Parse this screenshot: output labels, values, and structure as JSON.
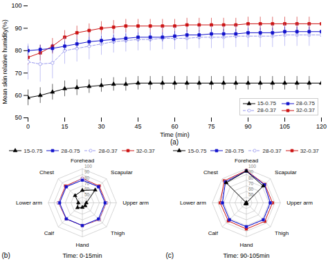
{
  "chart_data": [
    {
      "type": "line",
      "xlabel": "Time (min)",
      "ylabel": "Mean skin relative humidity(%)",
      "annotation": "(a)",
      "x": [
        0,
        5,
        10,
        15,
        20,
        25,
        30,
        35,
        40,
        45,
        50,
        55,
        60,
        65,
        70,
        75,
        80,
        85,
        90,
        95,
        100,
        105,
        110,
        115,
        120
      ],
      "series": [
        {
          "name": "15-0.75",
          "color": "#000000",
          "marker": "triangle",
          "line_style": "solid",
          "values": [
            59,
            60,
            61.5,
            63,
            63.5,
            64,
            64.5,
            65,
            65,
            65.5,
            65.5,
            65.5,
            65.5,
            65.5,
            65.5,
            65.5,
            65.5,
            65.5,
            65.5,
            65.5,
            65.5,
            65.5,
            65.5,
            65.5,
            65.5
          ],
          "errors": [
            3.5,
            3.5,
            3.5,
            3.5,
            3.5,
            3,
            3,
            3,
            3,
            3,
            3,
            3,
            3,
            3,
            3,
            3,
            3,
            3,
            3,
            3,
            3,
            3,
            3,
            3,
            3
          ]
        },
        {
          "name": "28-0.75",
          "color": "#1111CC",
          "marker": "square",
          "line_style": "solid",
          "values": [
            80,
            80.5,
            81,
            82,
            83,
            84,
            84.5,
            85,
            85.5,
            86,
            86,
            86,
            86.5,
            87,
            87,
            87.5,
            87.5,
            87.5,
            88,
            88,
            88,
            88.5,
            88.5,
            88.5,
            88.5
          ],
          "errors": [
            2,
            2,
            2,
            2,
            2,
            2,
            2,
            2,
            2,
            2,
            2,
            2,
            2,
            2,
            2,
            2,
            2,
            2,
            2,
            2,
            2,
            2,
            2,
            2,
            2
          ]
        },
        {
          "name": "28-0.37",
          "color": "#9999EE",
          "marker": "hollow_circle",
          "line_style": "dashed",
          "values": [
            75,
            74,
            74.5,
            80,
            81,
            82,
            83,
            84,
            84.5,
            85,
            85,
            85.5,
            85.5,
            85.5,
            86,
            86,
            86,
            86.5,
            86.5,
            86.5,
            86.5,
            87,
            87,
            87,
            87
          ],
          "errors": [
            8,
            8,
            7,
            6,
            6,
            6,
            5,
            5,
            5,
            5,
            5,
            5,
            5,
            5,
            5,
            5,
            5,
            5,
            5,
            5,
            5,
            5,
            5,
            5,
            5
          ]
        },
        {
          "name": "32-0.37",
          "color": "#CC1111",
          "marker": "square",
          "line_style": "solid",
          "values": [
            77,
            79,
            82,
            86,
            88,
            89,
            90,
            90.5,
            91,
            91,
            91,
            91,
            91,
            91.5,
            91.5,
            91.5,
            91.5,
            91.5,
            92,
            92,
            92,
            92,
            92,
            92,
            92
          ],
          "errors": [
            3.5,
            3.5,
            3.5,
            3,
            3,
            3,
            3,
            3,
            3,
            3,
            3,
            3,
            3,
            3,
            3,
            3,
            3,
            3,
            3,
            3,
            3,
            3,
            3,
            3,
            3
          ]
        }
      ],
      "xlim": [
        0,
        120
      ],
      "ylim": [
        50,
        100
      ],
      "xticks": [
        0,
        15,
        30,
        45,
        60,
        75,
        90,
        105,
        120
      ],
      "yticks": [
        50,
        60,
        70,
        80,
        90,
        100
      ],
      "legend": "lower right"
    },
    {
      "type": "radar",
      "title": "Time: 0-15min",
      "annotation": "(b)",
      "categories": [
        "Forehead",
        "Scapular",
        "Upper arm",
        "Thigh",
        "Hand",
        "Calf",
        "Lower arm",
        "Chest"
      ],
      "series": [
        {
          "name": "15-0.75",
          "color": "#000000",
          "marker": "triangle",
          "line_style": "solid",
          "values": [
            62,
            72,
            47,
            47,
            48,
            52,
            47,
            58
          ]
        },
        {
          "name": "28-0.75",
          "color": "#1111CC",
          "marker": "square",
          "line_style": "solid",
          "values": [
            80,
            80,
            80,
            80,
            80,
            80,
            80,
            80
          ]
        },
        {
          "name": "28-0.37",
          "color": "#9999EE",
          "marker": "hollow_circle",
          "line_style": "dashed",
          "values": [
            83,
            80,
            82,
            82,
            80,
            79,
            82,
            80
          ]
        },
        {
          "name": "32-0.37",
          "color": "#CC1111",
          "marker": "square",
          "line_style": "solid",
          "values": [
            83,
            82,
            82,
            82,
            80,
            80,
            82,
            82
          ]
        }
      ],
      "ylim": [
        40,
        100
      ],
      "yticks": [
        50,
        60,
        70,
        80,
        90,
        100
      ],
      "grid": true,
      "legend": "top"
    },
    {
      "type": "radar",
      "title": "Time: 90-105min",
      "annotation": "(c)",
      "categories": [
        "Forehead",
        "Scapular",
        "Upper arm",
        "Thigh",
        "Hand",
        "Calf",
        "Lower arm",
        "Chest"
      ],
      "series": [
        {
          "name": "15-0.75",
          "color": "#000000",
          "marker": "triangle",
          "line_style": "solid",
          "values": [
            96,
            82,
            40,
            40,
            42,
            42,
            40,
            90
          ]
        },
        {
          "name": "28-0.75",
          "color": "#1111CC",
          "marker": "square",
          "line_style": "solid",
          "values": [
            96,
            85,
            82,
            82,
            82,
            82,
            82,
            92
          ]
        },
        {
          "name": "28-0.37",
          "color": "#9999EE",
          "marker": "hollow_circle",
          "line_style": "dashed",
          "values": [
            96,
            85,
            83,
            83,
            82,
            82,
            83,
            93
          ]
        },
        {
          "name": "32-0.37",
          "color": "#CC1111",
          "marker": "square",
          "line_style": "solid",
          "values": [
            97,
            86,
            86,
            86,
            86,
            85,
            86,
            95
          ]
        }
      ],
      "ylim": [
        40,
        100
      ],
      "yticks": [
        50,
        60,
        70,
        80,
        90,
        100
      ],
      "grid": true,
      "legend": "top"
    }
  ]
}
